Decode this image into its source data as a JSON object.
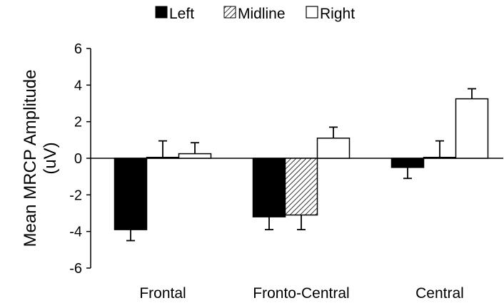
{
  "chart_data": {
    "type": "bar",
    "title": "",
    "xlabel": "",
    "ylabel_line1": "Mean MRCP Amplitude",
    "ylabel_line2": "(uV)",
    "ylim": [
      -6,
      6
    ],
    "yticks": [
      "6",
      "4",
      "2",
      "0",
      "-2",
      "-4",
      "-6"
    ],
    "ytick_values": [
      6,
      4,
      2,
      0,
      -2,
      -4,
      -6
    ],
    "categories": [
      "Frontal",
      "Fronto-Central",
      "Central"
    ],
    "legend_position": "top-center",
    "series": [
      {
        "name": "Left",
        "fill": "solid-black",
        "values": [
          -3.9,
          -3.2,
          -0.5
        ],
        "errors": [
          0.6,
          0.7,
          0.6
        ]
      },
      {
        "name": "Midline",
        "fill": "diagonal-hatch",
        "values": [
          0.05,
          -3.1,
          0.05
        ],
        "errors": [
          0.9,
          0.8,
          0.9
        ]
      },
      {
        "name": "Right",
        "fill": "white",
        "values": [
          0.25,
          1.1,
          3.25
        ],
        "errors": [
          0.6,
          0.6,
          0.55
        ]
      }
    ],
    "grid": false,
    "colors": {
      "left": "#000000",
      "midline_hatch": "#000000",
      "right": "#ffffff",
      "outline": "#000000"
    }
  }
}
